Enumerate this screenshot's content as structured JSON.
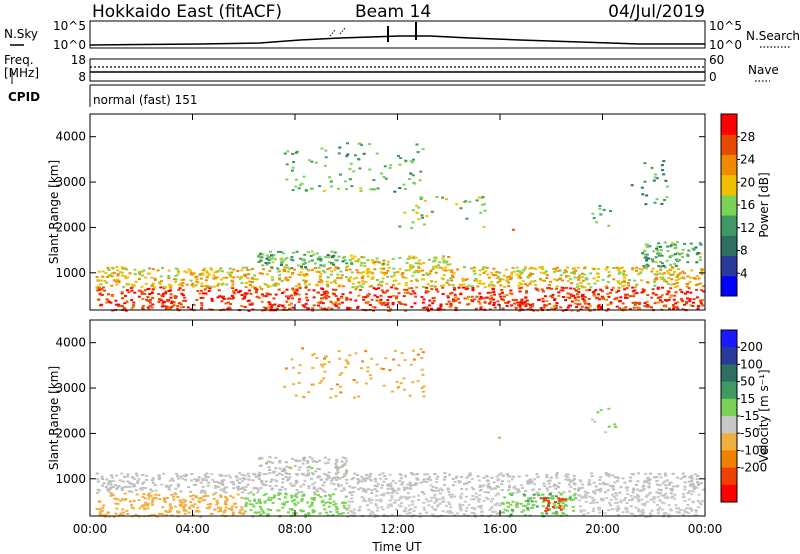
{
  "header": {
    "title": "Hokkaido East (fitACF)",
    "beam": "Beam 14",
    "date": "04/Jul/2019"
  },
  "side_labels": {
    "nsky": "N.Sky",
    "freq_top": "Freq.",
    "freq_unit": "[MHz]",
    "cpid": "CPID",
    "nsearch": "N.Search",
    "nave": "Nave"
  },
  "strips": {
    "nsky_ticks": [
      "10^5",
      "10^0"
    ],
    "freq_ticks": [
      "18",
      "8"
    ],
    "nave_ticks": [
      "60",
      "0"
    ],
    "cpid_text": "normal (fast) 151"
  },
  "colors": {
    "power_scale": [
      "#0000ff",
      "#2a3a9a",
      "#2f6e63",
      "#3e9a62",
      "#7ad356",
      "#f0c000",
      "#f08a00",
      "#e84800",
      "#ff0000"
    ],
    "velocity_scale": [
      "#ff0000",
      "#f04000",
      "#f08000",
      "#f0b040",
      "#c8c8c8",
      "#7ad356",
      "#3e9a62",
      "#2f6e63",
      "#2a3a9a",
      "#1a1aff"
    ],
    "ground": "#bebebe"
  },
  "chart_data": [
    {
      "type": "heatmap",
      "name": "power",
      "ylabel": "Slant Range [km]",
      "xlabel": "",
      "x_ticks": [
        "00:00",
        "04:00",
        "08:00",
        "12:00",
        "16:00",
        "20:00",
        "00:00"
      ],
      "xlim_hours": [
        0,
        24
      ],
      "ylim_km": [
        180,
        4500
      ],
      "y_ticks": [
        1000,
        2000,
        3000,
        4000
      ],
      "colorbar": {
        "label": "Power [dB]",
        "ticks": [
          4,
          8,
          12,
          16,
          20,
          24,
          28
        ],
        "range": [
          0,
          32
        ]
      },
      "regions": [
        {
          "t0": 0.2,
          "t1": 23.9,
          "r0": 180,
          "r1": 700,
          "value": 28
        },
        {
          "t0": 0.2,
          "t1": 23.9,
          "r0": 700,
          "r1": 1150,
          "value": 20
        },
        {
          "t0": 6.5,
          "t1": 10.0,
          "r0": 1100,
          "r1": 1500,
          "value": 14
        },
        {
          "t0": 10.0,
          "t1": 14.0,
          "r0": 1150,
          "r1": 1400,
          "value": 18
        },
        {
          "t0": 15.5,
          "t1": 16.5,
          "r0": 1900,
          "r1": 2000,
          "value": 24
        },
        {
          "t0": 19.5,
          "t1": 20.5,
          "r0": 2000,
          "r1": 2600,
          "value": 14
        },
        {
          "t0": 21.5,
          "t1": 23.8,
          "r0": 1150,
          "r1": 1700,
          "value": 14
        },
        {
          "t0": 7.5,
          "t1": 13.0,
          "r0": 2800,
          "r1": 3900,
          "value": 14
        },
        {
          "t0": 12.0,
          "t1": 15.5,
          "r0": 2000,
          "r1": 2700,
          "value": 16
        },
        {
          "t0": 21.0,
          "t1": 22.5,
          "r0": 2500,
          "r1": 3500,
          "value": 12
        }
      ]
    },
    {
      "type": "heatmap",
      "name": "velocity",
      "ylabel": "Slant Range [km]",
      "xlabel": "Time UT",
      "x_ticks": [
        "00:00",
        "04:00",
        "08:00",
        "12:00",
        "16:00",
        "20:00",
        "00:00"
      ],
      "xlim_hours": [
        0,
        24
      ],
      "ylim_km": [
        180,
        4500
      ],
      "y_ticks": [
        1000,
        2000,
        3000,
        4000
      ],
      "colorbar": {
        "label": "Velocity [m s⁻¹]",
        "ticks": [
          200,
          100,
          50,
          15,
          -15,
          -50,
          -100,
          -200
        ],
        "range": [
          -250,
          250
        ]
      },
      "regions": [
        {
          "t0": 0.2,
          "t1": 23.9,
          "r0": 700,
          "r1": 1150,
          "value": 0
        },
        {
          "t0": 0.2,
          "t1": 6.0,
          "r0": 180,
          "r1": 700,
          "value": -30
        },
        {
          "t0": 6.0,
          "t1": 10.0,
          "r0": 180,
          "r1": 700,
          "value": 30
        },
        {
          "t0": 10.0,
          "t1": 16.0,
          "r0": 180,
          "r1": 700,
          "value": 0
        },
        {
          "t0": 16.0,
          "t1": 19.0,
          "r0": 180,
          "r1": 700,
          "value": 40
        },
        {
          "t0": 17.5,
          "t1": 18.5,
          "r0": 300,
          "r1": 600,
          "value": -180
        },
        {
          "t0": 19.0,
          "t1": 23.9,
          "r0": 180,
          "r1": 700,
          "value": 0
        },
        {
          "t0": 6.5,
          "t1": 10.0,
          "r0": 1100,
          "r1": 1500,
          "value": 20
        },
        {
          "t0": 15.5,
          "t1": 16.5,
          "r0": 1900,
          "r1": 2000,
          "value": 40
        },
        {
          "t0": 7.5,
          "t1": 13.0,
          "r0": 2800,
          "r1": 3900,
          "value": -40
        },
        {
          "t0": 19.5,
          "t1": 20.5,
          "r0": 2000,
          "r1": 2600,
          "value": 20
        }
      ]
    }
  ]
}
